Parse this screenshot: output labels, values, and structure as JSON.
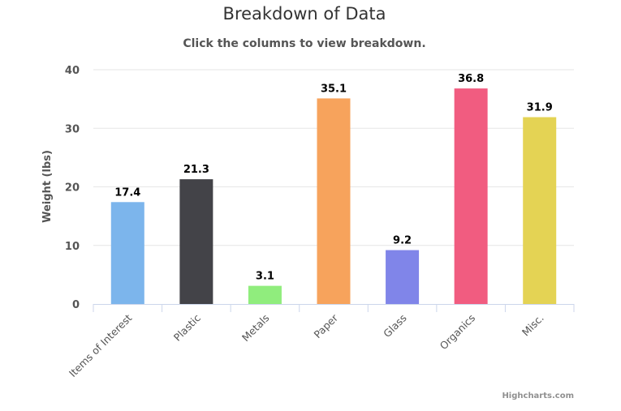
{
  "chart_data": {
    "type": "bar",
    "title": "Breakdown of Data",
    "subtitle": "Click the columns to view breakdown.",
    "xlabel": "",
    "ylabel": "Weight (lbs)",
    "ylim": [
      0,
      40
    ],
    "yticks": [
      0,
      10,
      20,
      30,
      40
    ],
    "categories": [
      "Items of Interest",
      "Plastic",
      "Metals",
      "Paper",
      "Glass",
      "Organics",
      "Misc."
    ],
    "values": [
      17.4,
      21.3,
      3.1,
      35.1,
      9.2,
      36.8,
      31.9
    ],
    "colors": [
      "#7cb5ec",
      "#434348",
      "#90ed7d",
      "#f7a35c",
      "#8085e9",
      "#f15c80",
      "#e4d354"
    ],
    "grid": true,
    "legend": "none",
    "credit": "Highcharts.com"
  }
}
